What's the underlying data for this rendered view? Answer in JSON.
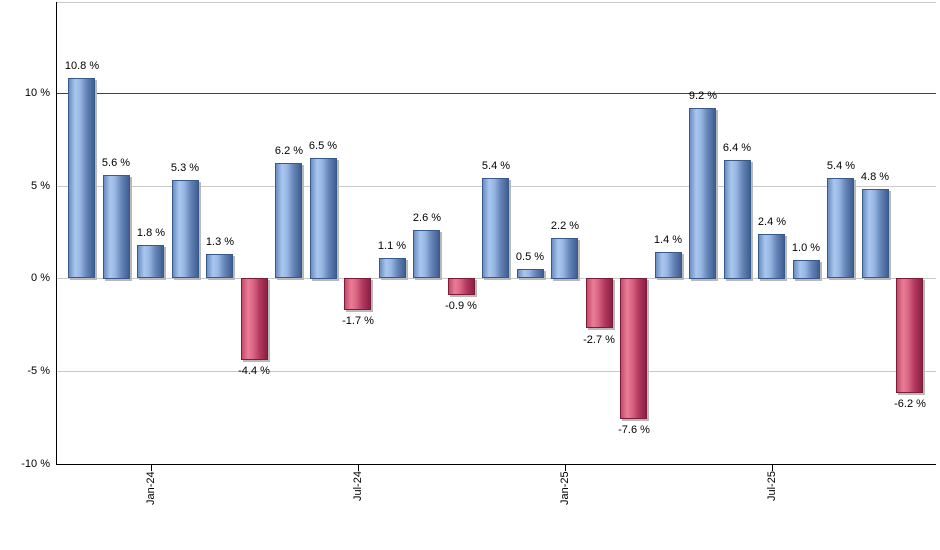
{
  "chart_data": {
    "type": "bar",
    "title": "",
    "xlabel": "",
    "ylabel": "",
    "values": [
      10.8,
      5.6,
      1.8,
      5.3,
      1.3,
      -4.4,
      6.2,
      6.5,
      -1.7,
      1.1,
      2.6,
      -0.9,
      5.4,
      0.5,
      2.2,
      -2.7,
      -7.6,
      1.4,
      9.2,
      6.4,
      2.4,
      1.0,
      5.4,
      4.8,
      -6.2
    ],
    "bar_labels": [
      "10.8 %",
      "5.6 %",
      "1.8 %",
      "5.3 %",
      "1.3 %",
      "-4.4 %",
      "6.2 %",
      "6.5 %",
      "-1.7 %",
      "1.1 %",
      "2.6 %",
      "-0.9 %",
      "5.4 %",
      "0.5 %",
      "2.2 %",
      "-2.7 %",
      "-7.6 %",
      "1.4 %",
      "9.2 %",
      "6.4 %",
      "2.4 %",
      "1.0 %",
      "5.4 %",
      "4.8 %",
      "-6.2 %"
    ],
    "x_ticks": [
      {
        "label": "Jan-24",
        "bar_index": 2
      },
      {
        "label": "Jul-24",
        "bar_index": 8
      },
      {
        "label": "Jan-25",
        "bar_index": 14
      },
      {
        "label": "Jul-25",
        "bar_index": 20
      }
    ],
    "y_ticks": [
      {
        "label": "10 %",
        "value": 10
      },
      {
        "label": "5 %",
        "value": 5
      },
      {
        "label": "0 %",
        "value": 0
      },
      {
        "label": "-5 %",
        "value": -5
      },
      {
        "label": "-10 %",
        "value": -10
      }
    ],
    "ylim": [
      -10,
      14.9
    ],
    "grid": true,
    "legend": false,
    "reference_line": {
      "value": 10,
      "color": "#007000"
    },
    "colors": {
      "positive_bar_edge": "#3f5f92",
      "positive_bar_highlight": "#a9c6ee",
      "negative_bar_edge": "#8a2044",
      "negative_bar_highlight": "#e87d96",
      "reference_line": "#007000",
      "gridline": "#c9c9c9",
      "axis": "#000000",
      "shadow": "#b9b9b9",
      "background": "#ffffff",
      "label_text": "#000000"
    }
  }
}
